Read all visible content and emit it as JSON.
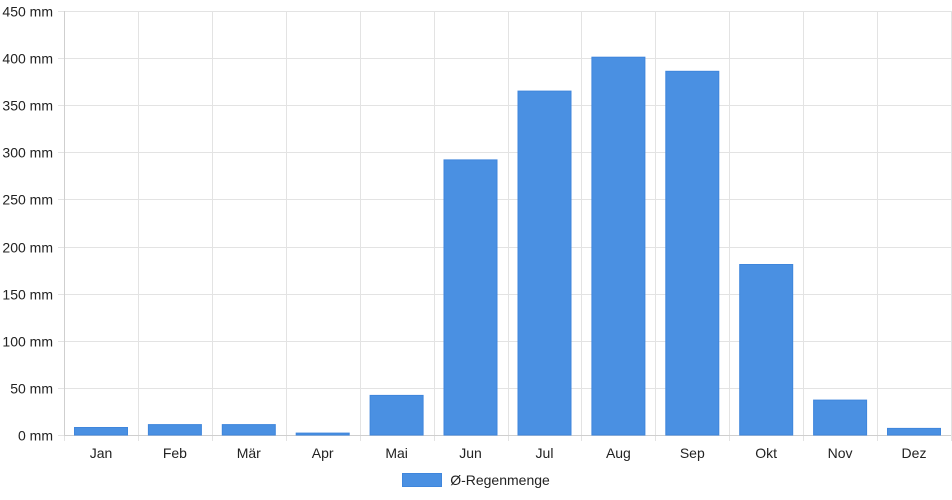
{
  "chart_data": {
    "type": "bar",
    "categories": [
      "Jan",
      "Feb",
      "Mär",
      "Apr",
      "Mai",
      "Jun",
      "Jul",
      "Aug",
      "Sep",
      "Okt",
      "Nov",
      "Dez"
    ],
    "series": [
      {
        "name": "Ø-Regenmenge",
        "values": [
          8,
          11,
          11,
          2,
          42,
          292,
          365,
          401,
          386,
          181,
          37,
          7
        ]
      }
    ],
    "y_unit_suffix": " mm",
    "ylim": [
      0,
      450
    ],
    "y_ticks": [
      0,
      50,
      100,
      150,
      200,
      250,
      300,
      350,
      400,
      450
    ],
    "y_tick_labels": [
      "0 mm",
      "50 mm",
      "100 mm",
      "150 mm",
      "200 mm",
      "250 mm",
      "300 mm",
      "350 mm",
      "400 mm",
      "450 mm"
    ],
    "grid": true,
    "legend_position": "bottom-center",
    "colors": {
      "bar": "#4a90e2",
      "bar_border": "#3f86dc",
      "grid": "#e3e3e3",
      "axis": "#cfcfcf",
      "text": "#222222"
    }
  }
}
